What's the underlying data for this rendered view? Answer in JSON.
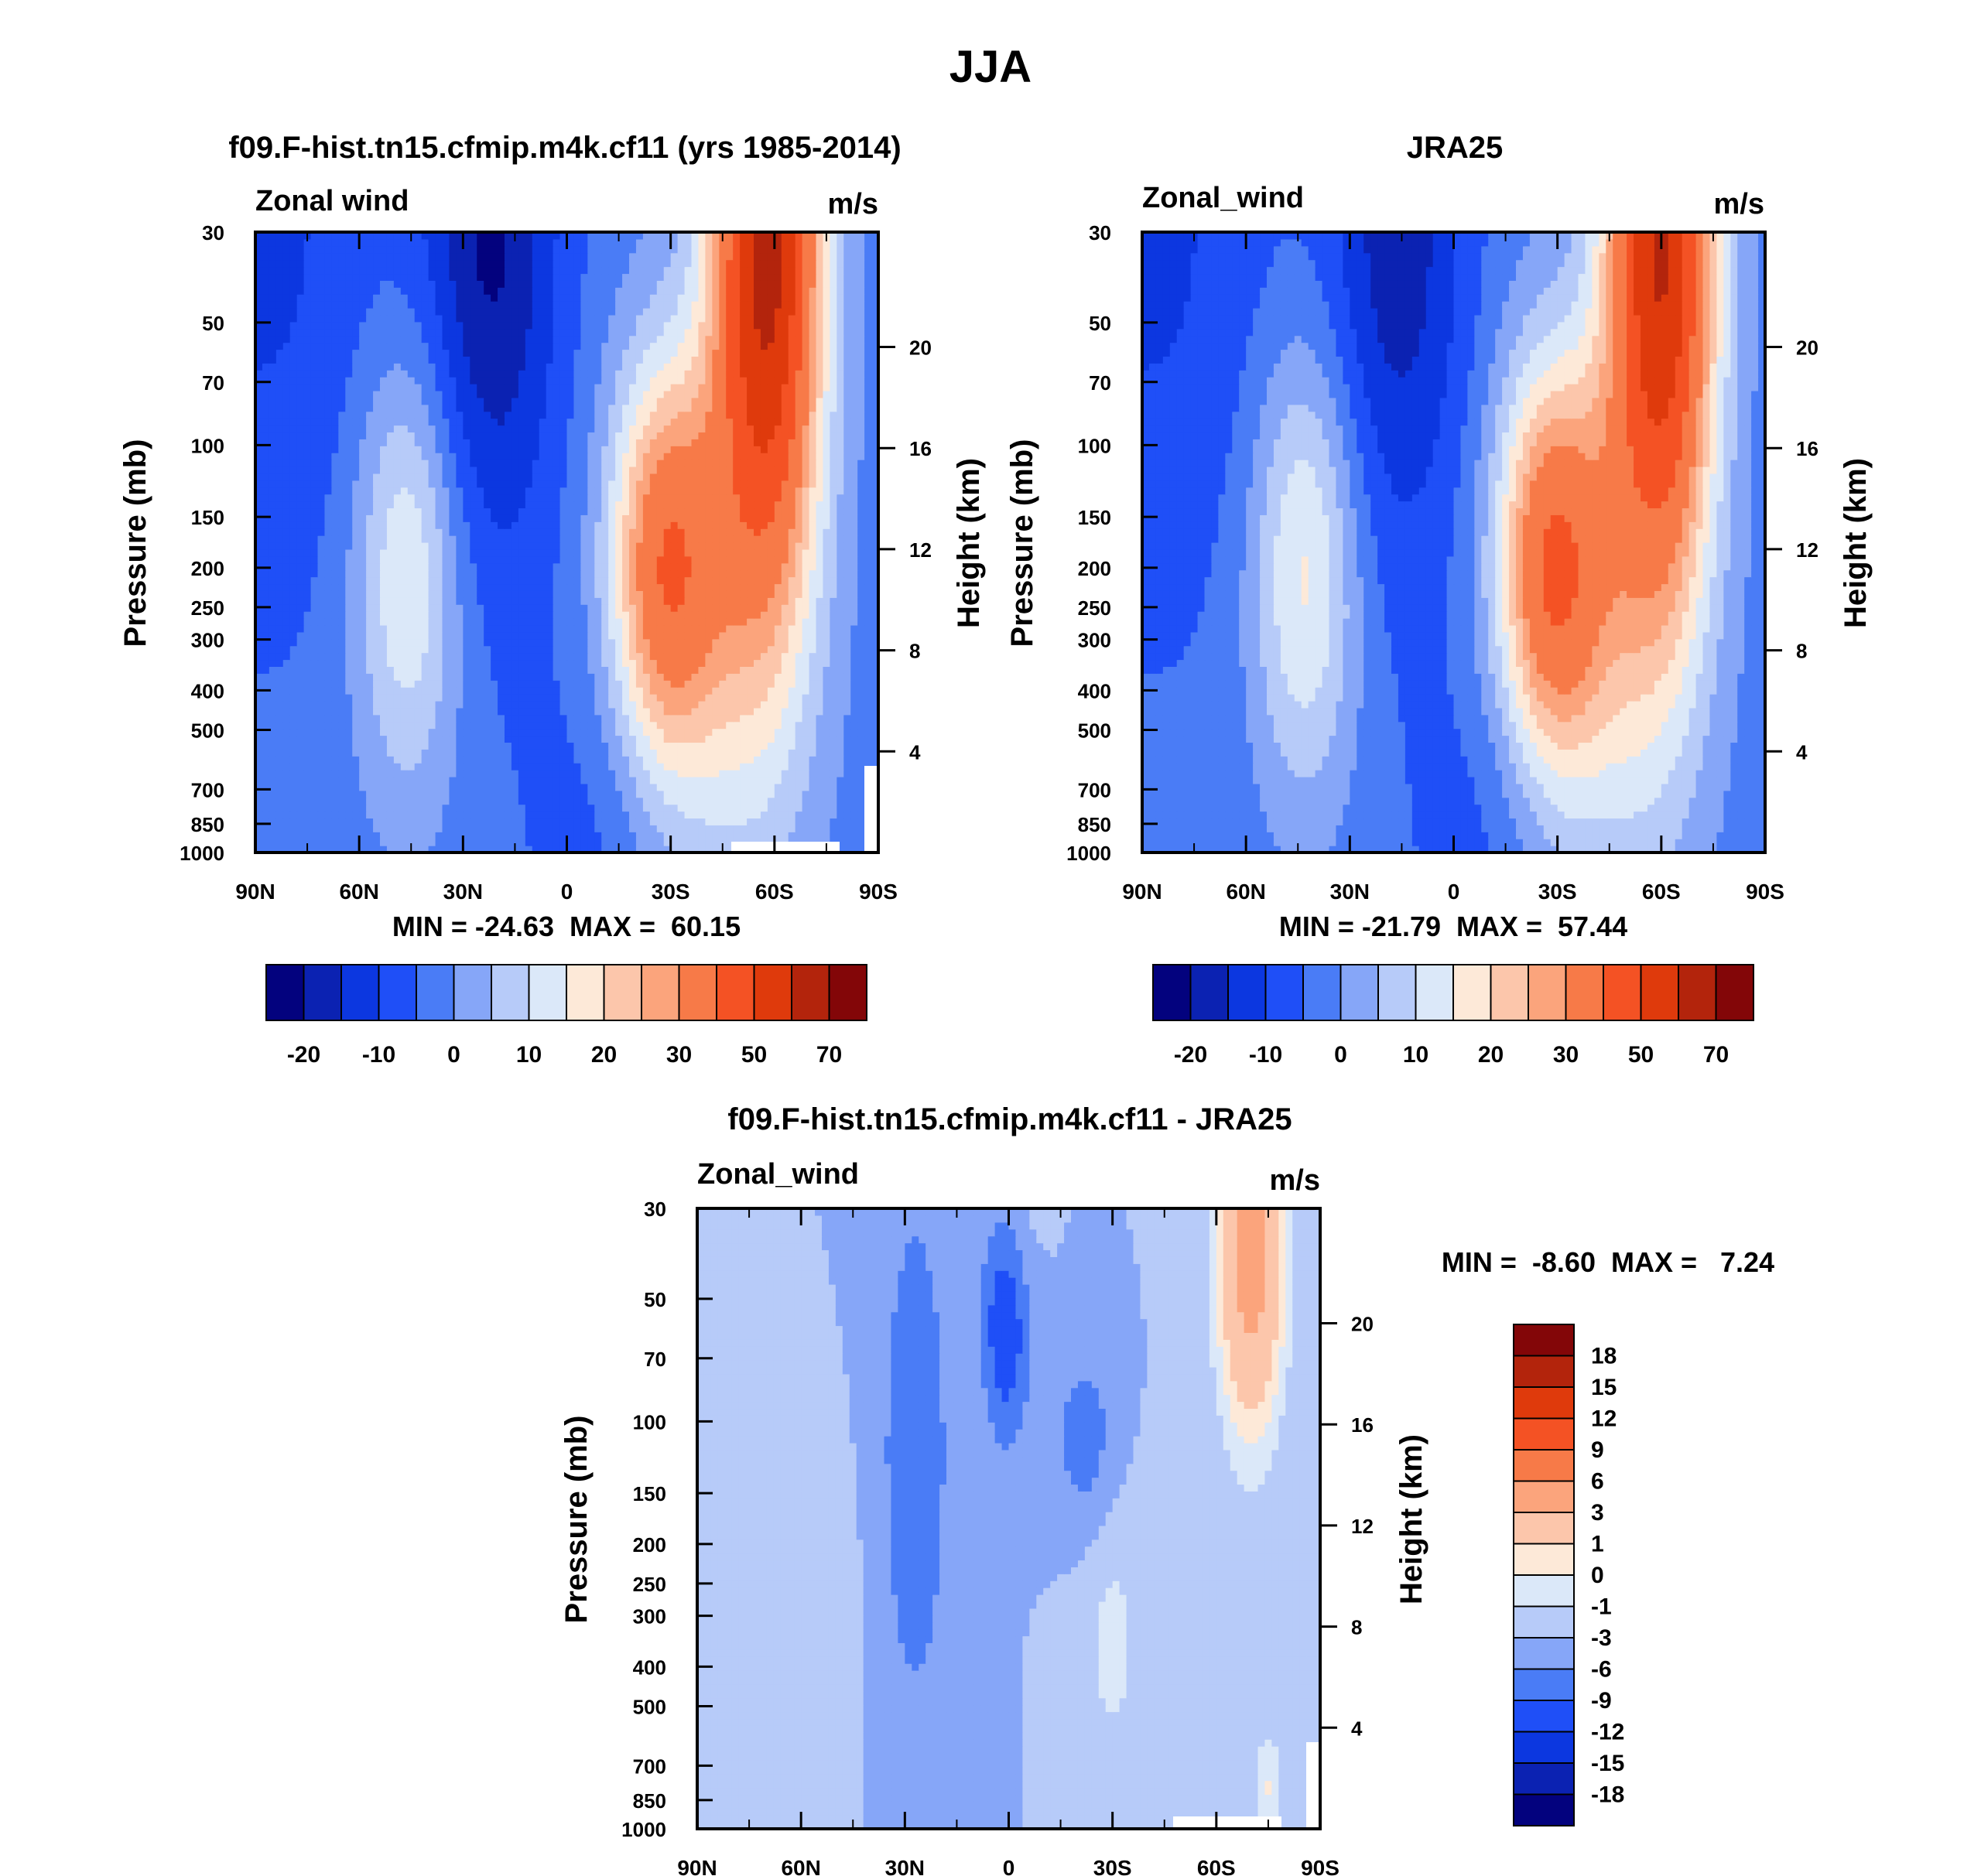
{
  "figure_title": "JJA",
  "shared": {
    "lat_ticks": [
      "90N",
      "60N",
      "30N",
      "0",
      "30S",
      "60S",
      "90S"
    ],
    "pressure_ticks": [
      "30",
      "50",
      "70",
      "100",
      "150",
      "200",
      "250",
      "300",
      "400",
      "500",
      "700",
      "850",
      "1000"
    ],
    "height_ticks": [
      "20",
      "16",
      "12",
      "8",
      "4"
    ]
  },
  "colors": {
    "abs_palette": [
      "#03027e",
      "#0b22b2",
      "#0c37e0",
      "#1f4ff7",
      "#4a7cf6",
      "#86a6f8",
      "#b7cbf9",
      "#dbe8f9",
      "#fde9d8",
      "#fcc6ab",
      "#fba47c",
      "#f77a48",
      "#f45224",
      "#df3a0c",
      "#b3240c",
      "#830608"
    ],
    "diff_palette": [
      "#03027e",
      "#0b22b2",
      "#0c37e0",
      "#1f4ff7",
      "#4a7cf6",
      "#86a6f8",
      "#b7cbf9",
      "#dbe8f9",
      "#fde9d8",
      "#fcc6ab",
      "#fba47c",
      "#f77a48",
      "#f45224",
      "#df3a0c",
      "#b3240c",
      "#830608"
    ],
    "missing": "#ffffff"
  },
  "chart_data": [
    {
      "type": "heatmap",
      "panel": "model",
      "title": "f09.F-hist.tn15.cfmip.m4k.cf11 (yrs 1985-2014)",
      "left_label": "Zonal wind",
      "units": "m/s",
      "ylabel": "Pressure (mb)",
      "ylabel_right": "Height (km)",
      "stats": "MIN = -24.63  MAX =  60.15",
      "x": [
        90,
        60,
        30,
        0,
        -30,
        -60,
        -90
      ],
      "ylim": [
        1000,
        30
      ],
      "levels": [
        -25,
        -20,
        -15,
        -10,
        -5,
        0,
        5,
        10,
        15,
        20,
        25,
        30,
        40,
        50,
        60,
        70
      ],
      "colorbar_labels": [
        "-20",
        "-10",
        "0",
        "10",
        "20",
        "30",
        "50",
        "70"
      ],
      "features": {
        "easterly_core": {
          "lat": 22,
          "pressure": 30,
          "max": -24.6
        },
        "nh_jet": {
          "lat": 46,
          "pressure": 200,
          "max": 16
        },
        "sh_subtropical_jet": {
          "lat": -28,
          "pressure": 200,
          "max": 40
        },
        "sh_polar_jet": {
          "lat": -58,
          "pressure": 30,
          "max": 60.2
        }
      }
    },
    {
      "type": "heatmap",
      "panel": "obs",
      "title": "JRA25",
      "left_label": "Zonal_wind",
      "units": "m/s",
      "ylabel": "Pressure (mb)",
      "ylabel_right": "Height (km)",
      "stats": "MIN = -21.79  MAX =  57.44",
      "x": [
        90,
        60,
        30,
        0,
        -30,
        -60,
        -90
      ],
      "ylim": [
        1000,
        30
      ],
      "levels": [
        -25,
        -20,
        -15,
        -10,
        -5,
        0,
        5,
        10,
        15,
        20,
        25,
        30,
        40,
        50,
        60,
        70
      ],
      "colorbar_labels": [
        "-20",
        "-10",
        "0",
        "10",
        "20",
        "30",
        "50",
        "70"
      ],
      "features": {
        "easterly_core": {
          "lat": 16,
          "pressure": 30,
          "max": -21.8
        },
        "nh_jet": {
          "lat": 43,
          "pressure": 200,
          "max": 17
        },
        "sh_subtropical_jet": {
          "lat": -28,
          "pressure": 200,
          "max": 42
        },
        "sh_polar_jet": {
          "lat": -60,
          "pressure": 30,
          "max": 57.4
        }
      }
    },
    {
      "type": "heatmap",
      "panel": "diff",
      "title": "f09.F-hist.tn15.cfmip.m4k.cf11 - JRA25",
      "left_label": "Zonal_wind",
      "units": "m/s",
      "ylabel": "Pressure (mb)",
      "ylabel_right": "Height (km)",
      "stats": "MIN =  -8.60  MAX =   7.24",
      "x": [
        90,
        60,
        30,
        0,
        -30,
        -60,
        -90
      ],
      "ylim": [
        1000,
        30
      ],
      "levels": [
        -21,
        -18,
        -15,
        -12,
        -9,
        -6,
        -3,
        -1,
        0,
        1,
        3,
        6,
        9,
        12,
        15,
        18,
        21
      ],
      "colorbar_labels": [
        "18",
        "15",
        "12",
        "9",
        "6",
        "3",
        "1",
        "0",
        "-1",
        "-3",
        "-6",
        "-9",
        "-12",
        "-15",
        "-18"
      ],
      "features": {
        "min_core": {
          "lat": 1,
          "pressure": 60,
          "value": -8.6
        },
        "max_core": {
          "lat": -70,
          "pressure": 35,
          "value": 7.24
        }
      }
    }
  ]
}
